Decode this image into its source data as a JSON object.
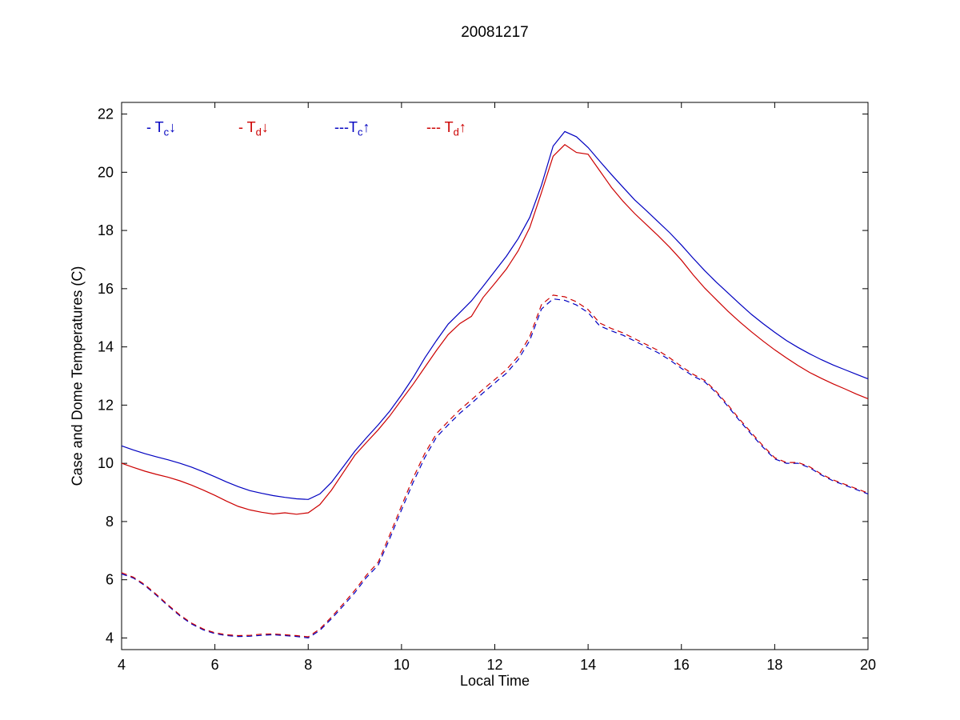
{
  "chart_data": {
    "type": "line",
    "title": "20081217",
    "xlabel": "Local Time",
    "ylabel": "Case and Dome Temperatures (C)",
    "xlim": [
      4,
      20
    ],
    "ylim": [
      3.6,
      22.4
    ],
    "xticks": [
      4,
      6,
      8,
      10,
      12,
      14,
      16,
      18,
      20
    ],
    "yticks": [
      4,
      6,
      8,
      10,
      12,
      14,
      16,
      18,
      20,
      22
    ],
    "grid": false,
    "legend_position": "top-left-inside",
    "x": [
      4,
      4.25,
      4.5,
      4.75,
      5,
      5.25,
      5.5,
      5.75,
      6,
      6.25,
      6.5,
      6.75,
      7,
      7.25,
      7.5,
      7.75,
      8,
      8.25,
      8.5,
      8.75,
      9,
      9.25,
      9.5,
      9.75,
      10,
      10.25,
      10.5,
      10.75,
      11,
      11.25,
      11.5,
      11.75,
      12,
      12.25,
      12.5,
      12.75,
      13,
      13.25,
      13.5,
      13.75,
      14,
      14.25,
      14.5,
      14.75,
      15,
      15.25,
      15.5,
      15.75,
      16,
      16.25,
      16.5,
      16.75,
      17,
      17.25,
      17.5,
      17.75,
      18,
      18.25,
      18.5,
      18.75,
      19,
      19.25,
      19.5,
      19.75,
      20
    ],
    "series": [
      {
        "id": "tc-down",
        "name": "Tc down",
        "label": "- Tc↓",
        "color": "#0000C0",
        "style": "solid",
        "y": [
          10.6,
          10.46,
          10.33,
          10.22,
          10.12,
          10.0,
          9.87,
          9.71,
          9.54,
          9.36,
          9.2,
          9.06,
          8.97,
          8.89,
          8.83,
          8.78,
          8.76,
          8.95,
          9.35,
          9.88,
          10.42,
          10.88,
          11.32,
          11.8,
          12.35,
          12.95,
          13.62,
          14.22,
          14.78,
          15.18,
          15.58,
          16.08,
          16.6,
          17.12,
          17.72,
          18.45,
          19.55,
          20.9,
          21.4,
          21.22,
          20.85,
          20.38,
          19.92,
          19.48,
          19.05,
          18.68,
          18.3,
          17.92,
          17.5,
          17.05,
          16.62,
          16.22,
          15.85,
          15.48,
          15.12,
          14.8,
          14.5,
          14.22,
          13.98,
          13.76,
          13.56,
          13.38,
          13.22,
          13.06,
          12.9
        ]
      },
      {
        "id": "td-down",
        "name": "Td down",
        "label": "- Td↓",
        "color": "#CC0000",
        "style": "solid",
        "y": [
          10.0,
          9.86,
          9.73,
          9.62,
          9.52,
          9.4,
          9.25,
          9.08,
          8.9,
          8.7,
          8.52,
          8.4,
          8.32,
          8.26,
          8.3,
          8.25,
          8.3,
          8.58,
          9.08,
          9.68,
          10.28,
          10.72,
          11.15,
          11.63,
          12.18,
          12.72,
          13.3,
          13.88,
          14.42,
          14.8,
          15.05,
          15.7,
          16.18,
          16.68,
          17.3,
          18.1,
          19.3,
          20.55,
          20.95,
          20.68,
          20.62,
          20.05,
          19.48,
          19.0,
          18.58,
          18.2,
          17.82,
          17.42,
          16.98,
          16.48,
          16.02,
          15.62,
          15.22,
          14.86,
          14.52,
          14.2,
          13.9,
          13.62,
          13.36,
          13.12,
          12.92,
          12.73,
          12.56,
          12.38,
          12.22
        ]
      },
      {
        "id": "tc-up",
        "name": "Tc up",
        "label": "---Tc↑",
        "color": "#0000C0",
        "style": "dashed",
        "y": [
          6.2,
          6.06,
          5.8,
          5.46,
          5.1,
          4.76,
          4.48,
          4.28,
          4.15,
          4.08,
          4.05,
          4.06,
          4.09,
          4.11,
          4.08,
          4.05,
          4.0,
          4.26,
          4.66,
          5.1,
          5.56,
          6.08,
          6.5,
          7.42,
          8.4,
          9.35,
          10.2,
          10.9,
          11.32,
          11.72,
          12.06,
          12.42,
          12.76,
          13.1,
          13.56,
          14.22,
          15.3,
          15.65,
          15.6,
          15.44,
          15.18,
          14.72,
          14.55,
          14.4,
          14.2,
          14.0,
          13.8,
          13.55,
          13.26,
          13.0,
          12.8,
          12.42,
          11.95,
          11.46,
          11.0,
          10.55,
          10.15,
          10.0,
          10.0,
          9.85,
          9.6,
          9.4,
          9.25,
          9.1,
          8.95
        ]
      },
      {
        "id": "td-up",
        "name": "Td up",
        "label": "--- Td↑",
        "color": "#CC0000",
        "style": "dashed",
        "y": [
          6.24,
          6.09,
          5.83,
          5.49,
          5.13,
          4.79,
          4.51,
          4.31,
          4.18,
          4.11,
          4.08,
          4.09,
          4.13,
          4.14,
          4.11,
          4.08,
          4.04,
          4.31,
          4.72,
          5.17,
          5.64,
          6.16,
          6.6,
          7.55,
          8.54,
          9.5,
          10.34,
          11.02,
          11.44,
          11.84,
          12.18,
          12.54,
          12.88,
          13.22,
          13.68,
          14.36,
          15.45,
          15.78,
          15.72,
          15.55,
          15.28,
          14.82,
          14.63,
          14.48,
          14.28,
          14.08,
          13.88,
          13.62,
          13.33,
          13.06,
          12.85,
          12.46,
          12.0,
          11.51,
          11.05,
          10.6,
          10.19,
          10.03,
          10.03,
          9.88,
          9.63,
          9.43,
          9.28,
          9.13,
          8.98
        ]
      }
    ]
  },
  "legend": {
    "items": [
      {
        "marker": "- ",
        "base": "T",
        "sub": "c",
        "arrow": "↓",
        "color": "#0000C0"
      },
      {
        "marker": "- ",
        "base": "T",
        "sub": "d",
        "arrow": "↓",
        "color": "#CC0000"
      },
      {
        "marker": "---",
        "base": "T",
        "sub": "c",
        "arrow": "↑",
        "color": "#0000C0"
      },
      {
        "marker": "--- ",
        "base": "T",
        "sub": "d",
        "arrow": "↑",
        "color": "#CC0000"
      }
    ]
  }
}
